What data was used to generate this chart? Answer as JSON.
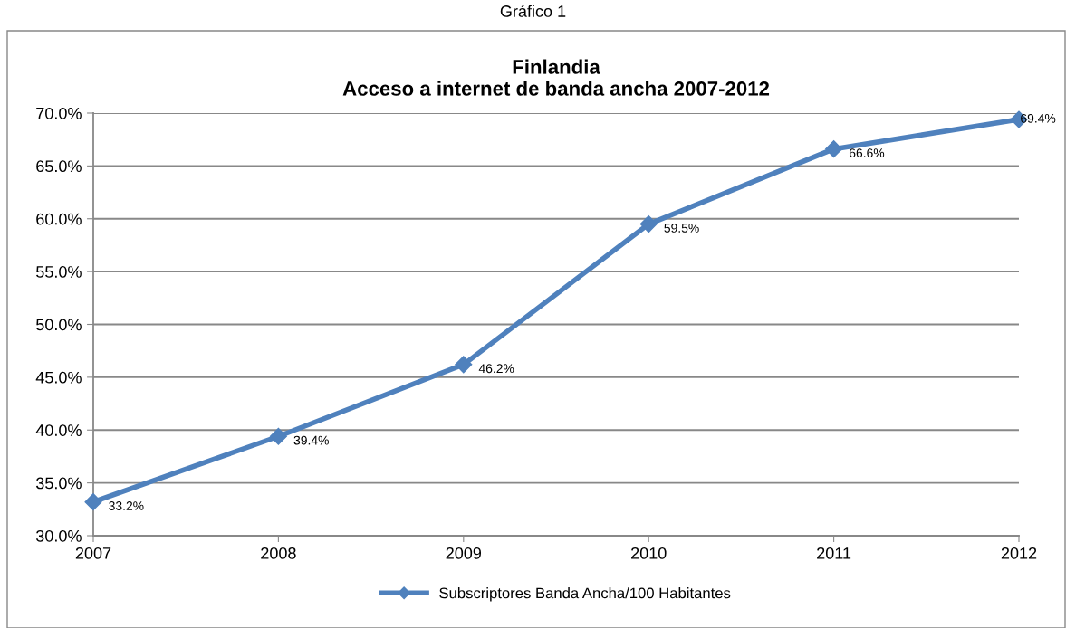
{
  "chart_data": {
    "type": "line",
    "title": "Finlandia\nAcceso a internet de banda ancha 2007-2012",
    "annotations": [
      "Gráfico 1"
    ],
    "categories": [
      "2007",
      "2008",
      "2009",
      "2010",
      "2011",
      "2012"
    ],
    "series": [
      {
        "name": "Subscriptores Banda Ancha/100 Habitantes",
        "color": "#4f81bd",
        "values": [
          33.2,
          39.4,
          46.2,
          59.5,
          66.6,
          69.4
        ],
        "value_labels": [
          "33.2%",
          "39.4%",
          "46.2%",
          "59.5%",
          "66.6%",
          "69.4%"
        ]
      }
    ],
    "ylim": [
      30,
      70
    ],
    "yticks": [
      {
        "value": 30,
        "label": "30.0%"
      },
      {
        "value": 35,
        "label": "35.0%"
      },
      {
        "value": 40,
        "label": "40.0%"
      },
      {
        "value": 45,
        "label": "45.0%"
      },
      {
        "value": 50,
        "label": "50.0%"
      },
      {
        "value": 55,
        "label": "55.0%"
      },
      {
        "value": 60,
        "label": "60.0%"
      },
      {
        "value": 65,
        "label": "65.0%"
      },
      {
        "value": 70,
        "label": "70.0%"
      }
    ],
    "grid": "y",
    "legend": "bottom",
    "marker": "diamond",
    "line_style": "solid"
  }
}
